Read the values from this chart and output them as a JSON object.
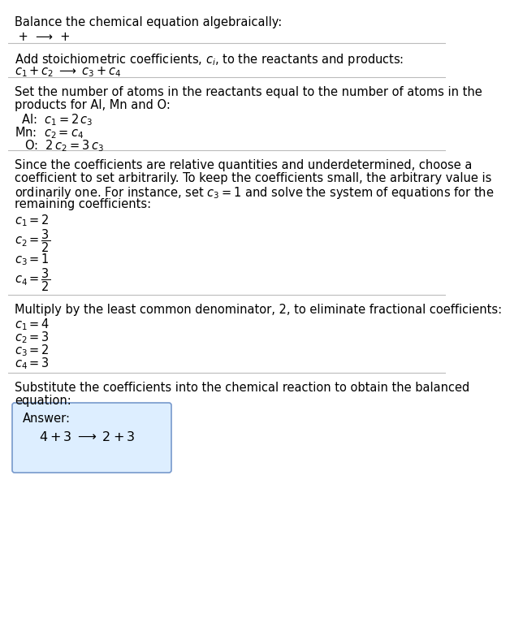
{
  "bg_color": "#ffffff",
  "text_color": "#000000",
  "line_color": "#bbbbbb",
  "answer_box_color": "#ddeeff",
  "answer_box_border": "#7799cc",
  "fontsize": 10.5,
  "sections": {
    "title": "Balance the chemical equation algebraically:",
    "reaction_line": " +  ⟶  + ",
    "stoich_heading": "Add stoichiometric coefficients, $c_i$, to the reactants and products:",
    "stoich_eq": "$c_1 + c_2 \\;\\longrightarrow\\; c_3 + c_4$",
    "atoms_heading1": "Set the number of atoms in the reactants equal to the number of atoms in the",
    "atoms_heading2": "products for Al, Mn and O:",
    "atom_Al": "Al:  $c_1 = 2\\,c_3$",
    "atom_Mn": "Mn:  $c_2 = c_4$",
    "atom_O": "O:  $2\\,c_2 = 3\\,c_3$",
    "para_lines": [
      "Since the coefficients are relative quantities and underdetermined, choose a",
      "coefficient to set arbitrarily. To keep the coefficients small, the arbitrary value is",
      "ordinarily one. For instance, set $c_3 = 1$ and solve the system of equations for the",
      "remaining coefficients:"
    ],
    "coeff1": [
      "$c_1 = 2$",
      "$c_2 = \\dfrac{3}{2}$",
      "$c_3 = 1$",
      "$c_4 = \\dfrac{3}{2}$"
    ],
    "multiply_heading": "Multiply by the least common denominator, 2, to eliminate fractional coefficients:",
    "coeff2": [
      "$c_1 = 4$",
      "$c_2 = 3$",
      "$c_3 = 2$",
      "$c_4 = 3$"
    ],
    "sub_heading1": "Substitute the coefficients into the chemical reaction to obtain the balanced",
    "sub_heading2": "equation:",
    "answer_label": "Answer:",
    "answer_eq": "$4 + 3 \\;\\longrightarrow\\; 2 + 3$"
  }
}
